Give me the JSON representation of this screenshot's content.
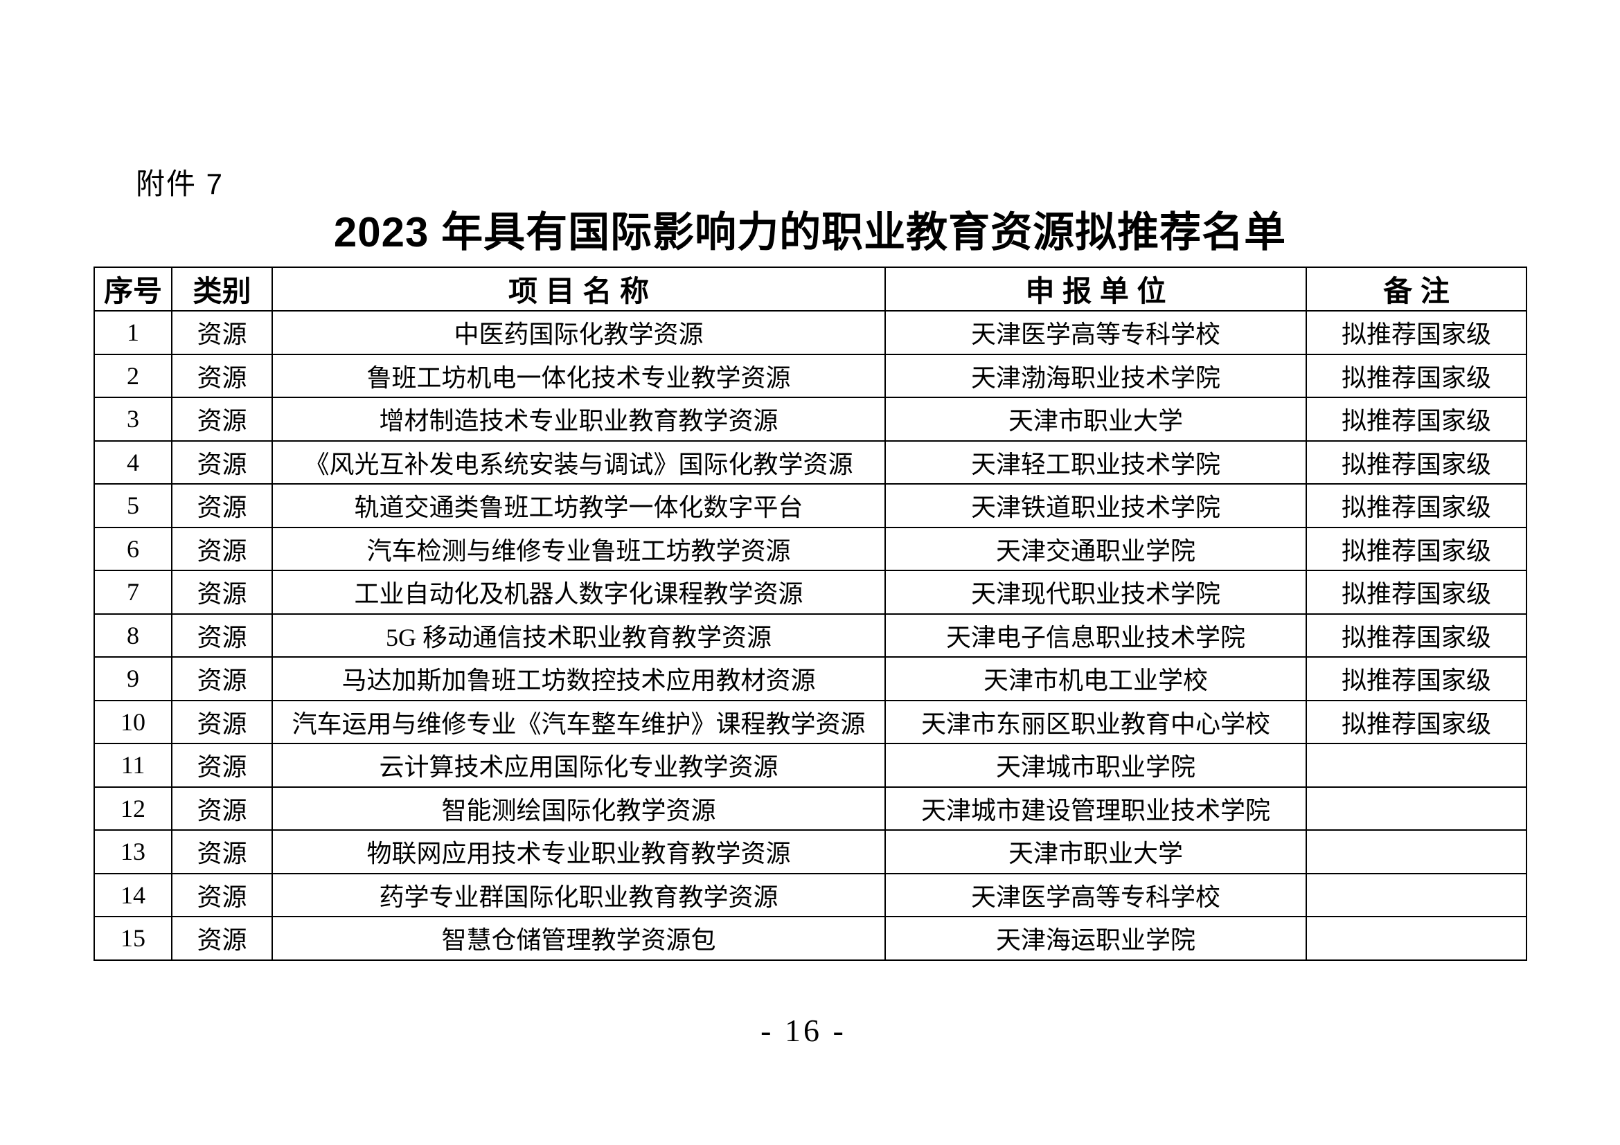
{
  "page": {
    "attachment_label": "附件 7",
    "title": "2023 年具有国际影响力的职业教育资源拟推荐名单",
    "page_number": "- 16 -"
  },
  "table": {
    "headers": [
      "序号",
      "类别",
      "项 目 名 称",
      "申 报 单 位",
      "备 注"
    ],
    "rows": [
      {
        "no": "1",
        "category": "资源",
        "project": "中医药国际化教学资源",
        "unit": "天津医学高等专科学校",
        "remark": "拟推荐国家级"
      },
      {
        "no": "2",
        "category": "资源",
        "project": "鲁班工坊机电一体化技术专业教学资源",
        "unit": "天津渤海职业技术学院",
        "remark": "拟推荐国家级"
      },
      {
        "no": "3",
        "category": "资源",
        "project": "增材制造技术专业职业教育教学资源",
        "unit": "天津市职业大学",
        "remark": "拟推荐国家级"
      },
      {
        "no": "4",
        "category": "资源",
        "project": "《风光互补发电系统安装与调试》国际化教学资源",
        "unit": "天津轻工职业技术学院",
        "remark": "拟推荐国家级"
      },
      {
        "no": "5",
        "category": "资源",
        "project": "轨道交通类鲁班工坊教学一体化数字平台",
        "unit": "天津铁道职业技术学院",
        "remark": "拟推荐国家级"
      },
      {
        "no": "6",
        "category": "资源",
        "project": "汽车检测与维修专业鲁班工坊教学资源",
        "unit": "天津交通职业学院",
        "remark": "拟推荐国家级"
      },
      {
        "no": "7",
        "category": "资源",
        "project": "工业自动化及机器人数字化课程教学资源",
        "unit": "天津现代职业技术学院",
        "remark": "拟推荐国家级"
      },
      {
        "no": "8",
        "category": "资源",
        "project": "5G 移动通信技术职业教育教学资源",
        "unit": "天津电子信息职业技术学院",
        "remark": "拟推荐国家级"
      },
      {
        "no": "9",
        "category": "资源",
        "project": "马达加斯加鲁班工坊数控技术应用教材资源",
        "unit": "天津市机电工业学校",
        "remark": "拟推荐国家级"
      },
      {
        "no": "10",
        "category": "资源",
        "project": "汽车运用与维修专业《汽车整车维护》课程教学资源",
        "unit": "天津市东丽区职业教育中心学校",
        "remark": "拟推荐国家级"
      },
      {
        "no": "11",
        "category": "资源",
        "project": "云计算技术应用国际化专业教学资源",
        "unit": "天津城市职业学院",
        "remark": ""
      },
      {
        "no": "12",
        "category": "资源",
        "project": "智能测绘国际化教学资源",
        "unit": "天津城市建设管理职业技术学院",
        "remark": ""
      },
      {
        "no": "13",
        "category": "资源",
        "project": "物联网应用技术专业职业教育教学资源",
        "unit": "天津市职业大学",
        "remark": ""
      },
      {
        "no": "14",
        "category": "资源",
        "project": "药学专业群国际化职业教育教学资源",
        "unit": "天津医学高等专科学校",
        "remark": ""
      },
      {
        "no": "15",
        "category": "资源",
        "project": "智慧仓储管理教学资源包",
        "unit": "天津海运职业学院",
        "remark": ""
      }
    ]
  }
}
